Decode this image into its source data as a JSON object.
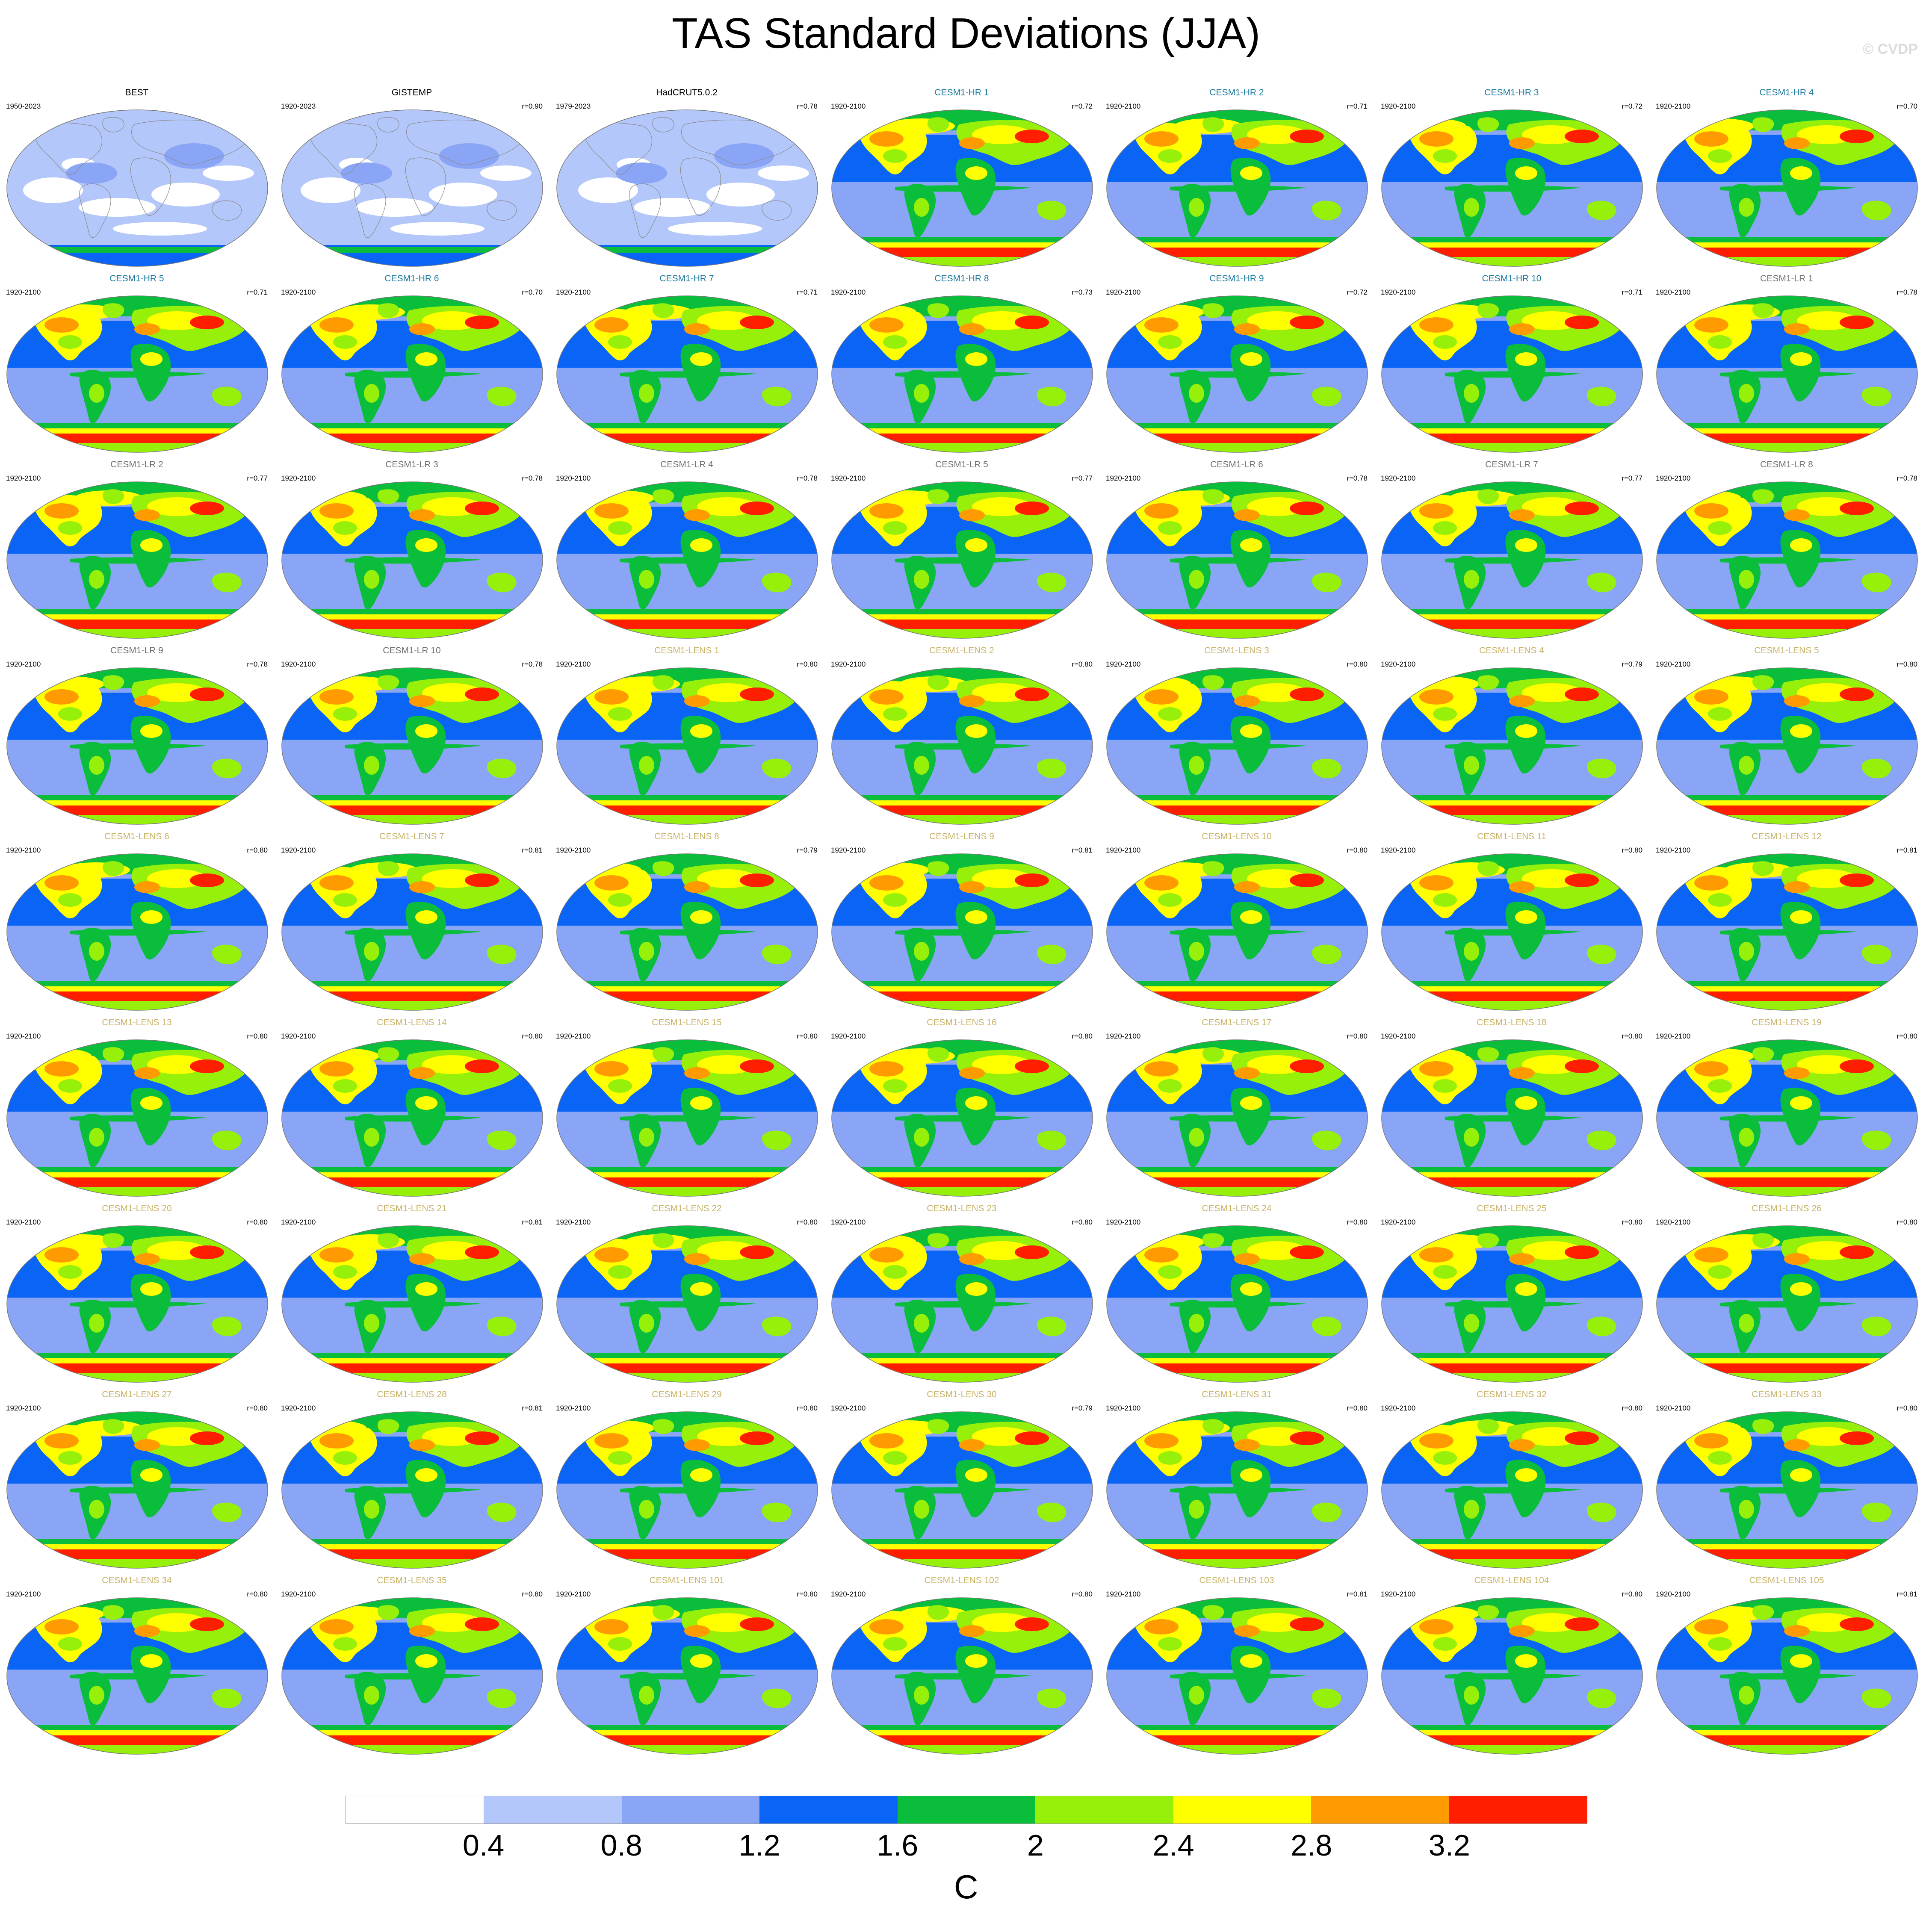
{
  "figure": {
    "title": "TAS Standard Deviations (JJA)",
    "watermark": "© CVDP"
  },
  "colors": {
    "observations": "#000000",
    "CESM1-HR": "#1b7a9e",
    "CESM1-LR": "#6f7373",
    "CESM1-LENS": "#c9b46a"
  },
  "chart_data": {
    "type": "heatmap",
    "description_kind": "map panels of standard deviation (colour-filled contours)",
    "units": "C",
    "colorbar": {
      "levels": [
        0.4,
        0.8,
        1.2,
        1.6,
        2,
        2.4,
        2.8,
        3.2
      ],
      "tick_labels": [
        "0.4",
        "0.8",
        "1.2",
        "1.6",
        "2",
        "2.4",
        "2.8",
        "3.2"
      ],
      "colors": [
        "#ffffff",
        "#b4c7fa",
        "#8aa5f5",
        "#0a64f5",
        "#0abe3c",
        "#96f00a",
        "#ffff00",
        "#ff9b00",
        "#ff1e00"
      ]
    },
    "panels": [
      {
        "name": "BEST",
        "period": "1950-2023",
        "r": "",
        "group": "observations"
      },
      {
        "name": "GISTEMP",
        "period": "1920-2023",
        "r": "r=0.90",
        "group": "observations"
      },
      {
        "name": "HadCRUT5.0.2",
        "period": "1979-2023",
        "r": "r=0.78",
        "group": "observations"
      },
      {
        "name": "CESM1-HR 1",
        "period": "1920-2100",
        "r": "r=0.72",
        "group": "CESM1-HR"
      },
      {
        "name": "CESM1-HR 2",
        "period": "1920-2100",
        "r": "r=0.71",
        "group": "CESM1-HR"
      },
      {
        "name": "CESM1-HR 3",
        "period": "1920-2100",
        "r": "r=0.72",
        "group": "CESM1-HR"
      },
      {
        "name": "CESM1-HR 4",
        "period": "1920-2100",
        "r": "r=0.70",
        "group": "CESM1-HR"
      },
      {
        "name": "CESM1-HR 5",
        "period": "1920-2100",
        "r": "r=0.71",
        "group": "CESM1-HR"
      },
      {
        "name": "CESM1-HR 6",
        "period": "1920-2100",
        "r": "r=0.70",
        "group": "CESM1-HR"
      },
      {
        "name": "CESM1-HR 7",
        "period": "1920-2100",
        "r": "r=0.71",
        "group": "CESM1-HR"
      },
      {
        "name": "CESM1-HR 8",
        "period": "1920-2100",
        "r": "r=0.73",
        "group": "CESM1-HR"
      },
      {
        "name": "CESM1-HR 9",
        "period": "1920-2100",
        "r": "r=0.72",
        "group": "CESM1-HR"
      },
      {
        "name": "CESM1-HR 10",
        "period": "1920-2100",
        "r": "r=0.71",
        "group": "CESM1-HR"
      },
      {
        "name": "CESM1-LR 1",
        "period": "1920-2100",
        "r": "r=0.78",
        "group": "CESM1-LR"
      },
      {
        "name": "CESM1-LR 2",
        "period": "1920-2100",
        "r": "r=0.77",
        "group": "CESM1-LR"
      },
      {
        "name": "CESM1-LR 3",
        "period": "1920-2100",
        "r": "r=0.78",
        "group": "CESM1-LR"
      },
      {
        "name": "CESM1-LR 4",
        "period": "1920-2100",
        "r": "r=0.78",
        "group": "CESM1-LR"
      },
      {
        "name": "CESM1-LR 5",
        "period": "1920-2100",
        "r": "r=0.77",
        "group": "CESM1-LR"
      },
      {
        "name": "CESM1-LR 6",
        "period": "1920-2100",
        "r": "r=0.78",
        "group": "CESM1-LR"
      },
      {
        "name": "CESM1-LR 7",
        "period": "1920-2100",
        "r": "r=0.77",
        "group": "CESM1-LR"
      },
      {
        "name": "CESM1-LR 8",
        "period": "1920-2100",
        "r": "r=0.78",
        "group": "CESM1-LR"
      },
      {
        "name": "CESM1-LR 9",
        "period": "1920-2100",
        "r": "r=0.78",
        "group": "CESM1-LR"
      },
      {
        "name": "CESM1-LR 10",
        "period": "1920-2100",
        "r": "r=0.78",
        "group": "CESM1-LR"
      },
      {
        "name": "CESM1-LENS 1",
        "period": "1920-2100",
        "r": "r=0.80",
        "group": "CESM1-LENS"
      },
      {
        "name": "CESM1-LENS 2",
        "period": "1920-2100",
        "r": "r=0.80",
        "group": "CESM1-LENS"
      },
      {
        "name": "CESM1-LENS 3",
        "period": "1920-2100",
        "r": "r=0.80",
        "group": "CESM1-LENS"
      },
      {
        "name": "CESM1-LENS 4",
        "period": "1920-2100",
        "r": "r=0.79",
        "group": "CESM1-LENS"
      },
      {
        "name": "CESM1-LENS 5",
        "period": "1920-2100",
        "r": "r=0.80",
        "group": "CESM1-LENS"
      },
      {
        "name": "CESM1-LENS 6",
        "period": "1920-2100",
        "r": "r=0.80",
        "group": "CESM1-LENS"
      },
      {
        "name": "CESM1-LENS 7",
        "period": "1920-2100",
        "r": "r=0.81",
        "group": "CESM1-LENS"
      },
      {
        "name": "CESM1-LENS 8",
        "period": "1920-2100",
        "r": "r=0.79",
        "group": "CESM1-LENS"
      },
      {
        "name": "CESM1-LENS 9",
        "period": "1920-2100",
        "r": "r=0.81",
        "group": "CESM1-LENS"
      },
      {
        "name": "CESM1-LENS 10",
        "period": "1920-2100",
        "r": "r=0.80",
        "group": "CESM1-LENS"
      },
      {
        "name": "CESM1-LENS 11",
        "period": "1920-2100",
        "r": "r=0.80",
        "group": "CESM1-LENS"
      },
      {
        "name": "CESM1-LENS 12",
        "period": "1920-2100",
        "r": "r=0.81",
        "group": "CESM1-LENS"
      },
      {
        "name": "CESM1-LENS 13",
        "period": "1920-2100",
        "r": "r=0.80",
        "group": "CESM1-LENS"
      },
      {
        "name": "CESM1-LENS 14",
        "period": "1920-2100",
        "r": "r=0.80",
        "group": "CESM1-LENS"
      },
      {
        "name": "CESM1-LENS 15",
        "period": "1920-2100",
        "r": "r=0.80",
        "group": "CESM1-LENS"
      },
      {
        "name": "CESM1-LENS 16",
        "period": "1920-2100",
        "r": "r=0.80",
        "group": "CESM1-LENS"
      },
      {
        "name": "CESM1-LENS 17",
        "period": "1920-2100",
        "r": "r=0.80",
        "group": "CESM1-LENS"
      },
      {
        "name": "CESM1-LENS 18",
        "period": "1920-2100",
        "r": "r=0.80",
        "group": "CESM1-LENS"
      },
      {
        "name": "CESM1-LENS 19",
        "period": "1920-2100",
        "r": "r=0.80",
        "group": "CESM1-LENS"
      },
      {
        "name": "CESM1-LENS 20",
        "period": "1920-2100",
        "r": "r=0.80",
        "group": "CESM1-LENS"
      },
      {
        "name": "CESM1-LENS 21",
        "period": "1920-2100",
        "r": "r=0.81",
        "group": "CESM1-LENS"
      },
      {
        "name": "CESM1-LENS 22",
        "period": "1920-2100",
        "r": "r=0.80",
        "group": "CESM1-LENS"
      },
      {
        "name": "CESM1-LENS 23",
        "period": "1920-2100",
        "r": "r=0.80",
        "group": "CESM1-LENS"
      },
      {
        "name": "CESM1-LENS 24",
        "period": "1920-2100",
        "r": "r=0.80",
        "group": "CESM1-LENS"
      },
      {
        "name": "CESM1-LENS 25",
        "period": "1920-2100",
        "r": "r=0.80",
        "group": "CESM1-LENS"
      },
      {
        "name": "CESM1-LENS 26",
        "period": "1920-2100",
        "r": "r=0.80",
        "group": "CESM1-LENS"
      },
      {
        "name": "CESM1-LENS 27",
        "period": "1920-2100",
        "r": "r=0.80",
        "group": "CESM1-LENS"
      },
      {
        "name": "CESM1-LENS 28",
        "period": "1920-2100",
        "r": "r=0.81",
        "group": "CESM1-LENS"
      },
      {
        "name": "CESM1-LENS 29",
        "period": "1920-2100",
        "r": "r=0.80",
        "group": "CESM1-LENS"
      },
      {
        "name": "CESM1-LENS 30",
        "period": "1920-2100",
        "r": "r=0.79",
        "group": "CESM1-LENS"
      },
      {
        "name": "CESM1-LENS 31",
        "period": "1920-2100",
        "r": "r=0.80",
        "group": "CESM1-LENS"
      },
      {
        "name": "CESM1-LENS 32",
        "period": "1920-2100",
        "r": "r=0.80",
        "group": "CESM1-LENS"
      },
      {
        "name": "CESM1-LENS 33",
        "period": "1920-2100",
        "r": "r=0.80",
        "group": "CESM1-LENS"
      },
      {
        "name": "CESM1-LENS 34",
        "period": "1920-2100",
        "r": "r=0.80",
        "group": "CESM1-LENS"
      },
      {
        "name": "CESM1-LENS 35",
        "period": "1920-2100",
        "r": "r=0.80",
        "group": "CESM1-LENS"
      },
      {
        "name": "CESM1-LENS 101",
        "period": "1920-2100",
        "r": "r=0.80",
        "group": "CESM1-LENS"
      },
      {
        "name": "CESM1-LENS 102",
        "period": "1920-2100",
        "r": "r=0.80",
        "group": "CESM1-LENS"
      },
      {
        "name": "CESM1-LENS 103",
        "period": "1920-2100",
        "r": "r=0.81",
        "group": "CESM1-LENS"
      },
      {
        "name": "CESM1-LENS 104",
        "period": "1920-2100",
        "r": "r=0.80",
        "group": "CESM1-LENS"
      },
      {
        "name": "CESM1-LENS 105",
        "period": "1920-2100",
        "r": "r=0.81",
        "group": "CESM1-LENS"
      }
    ]
  }
}
